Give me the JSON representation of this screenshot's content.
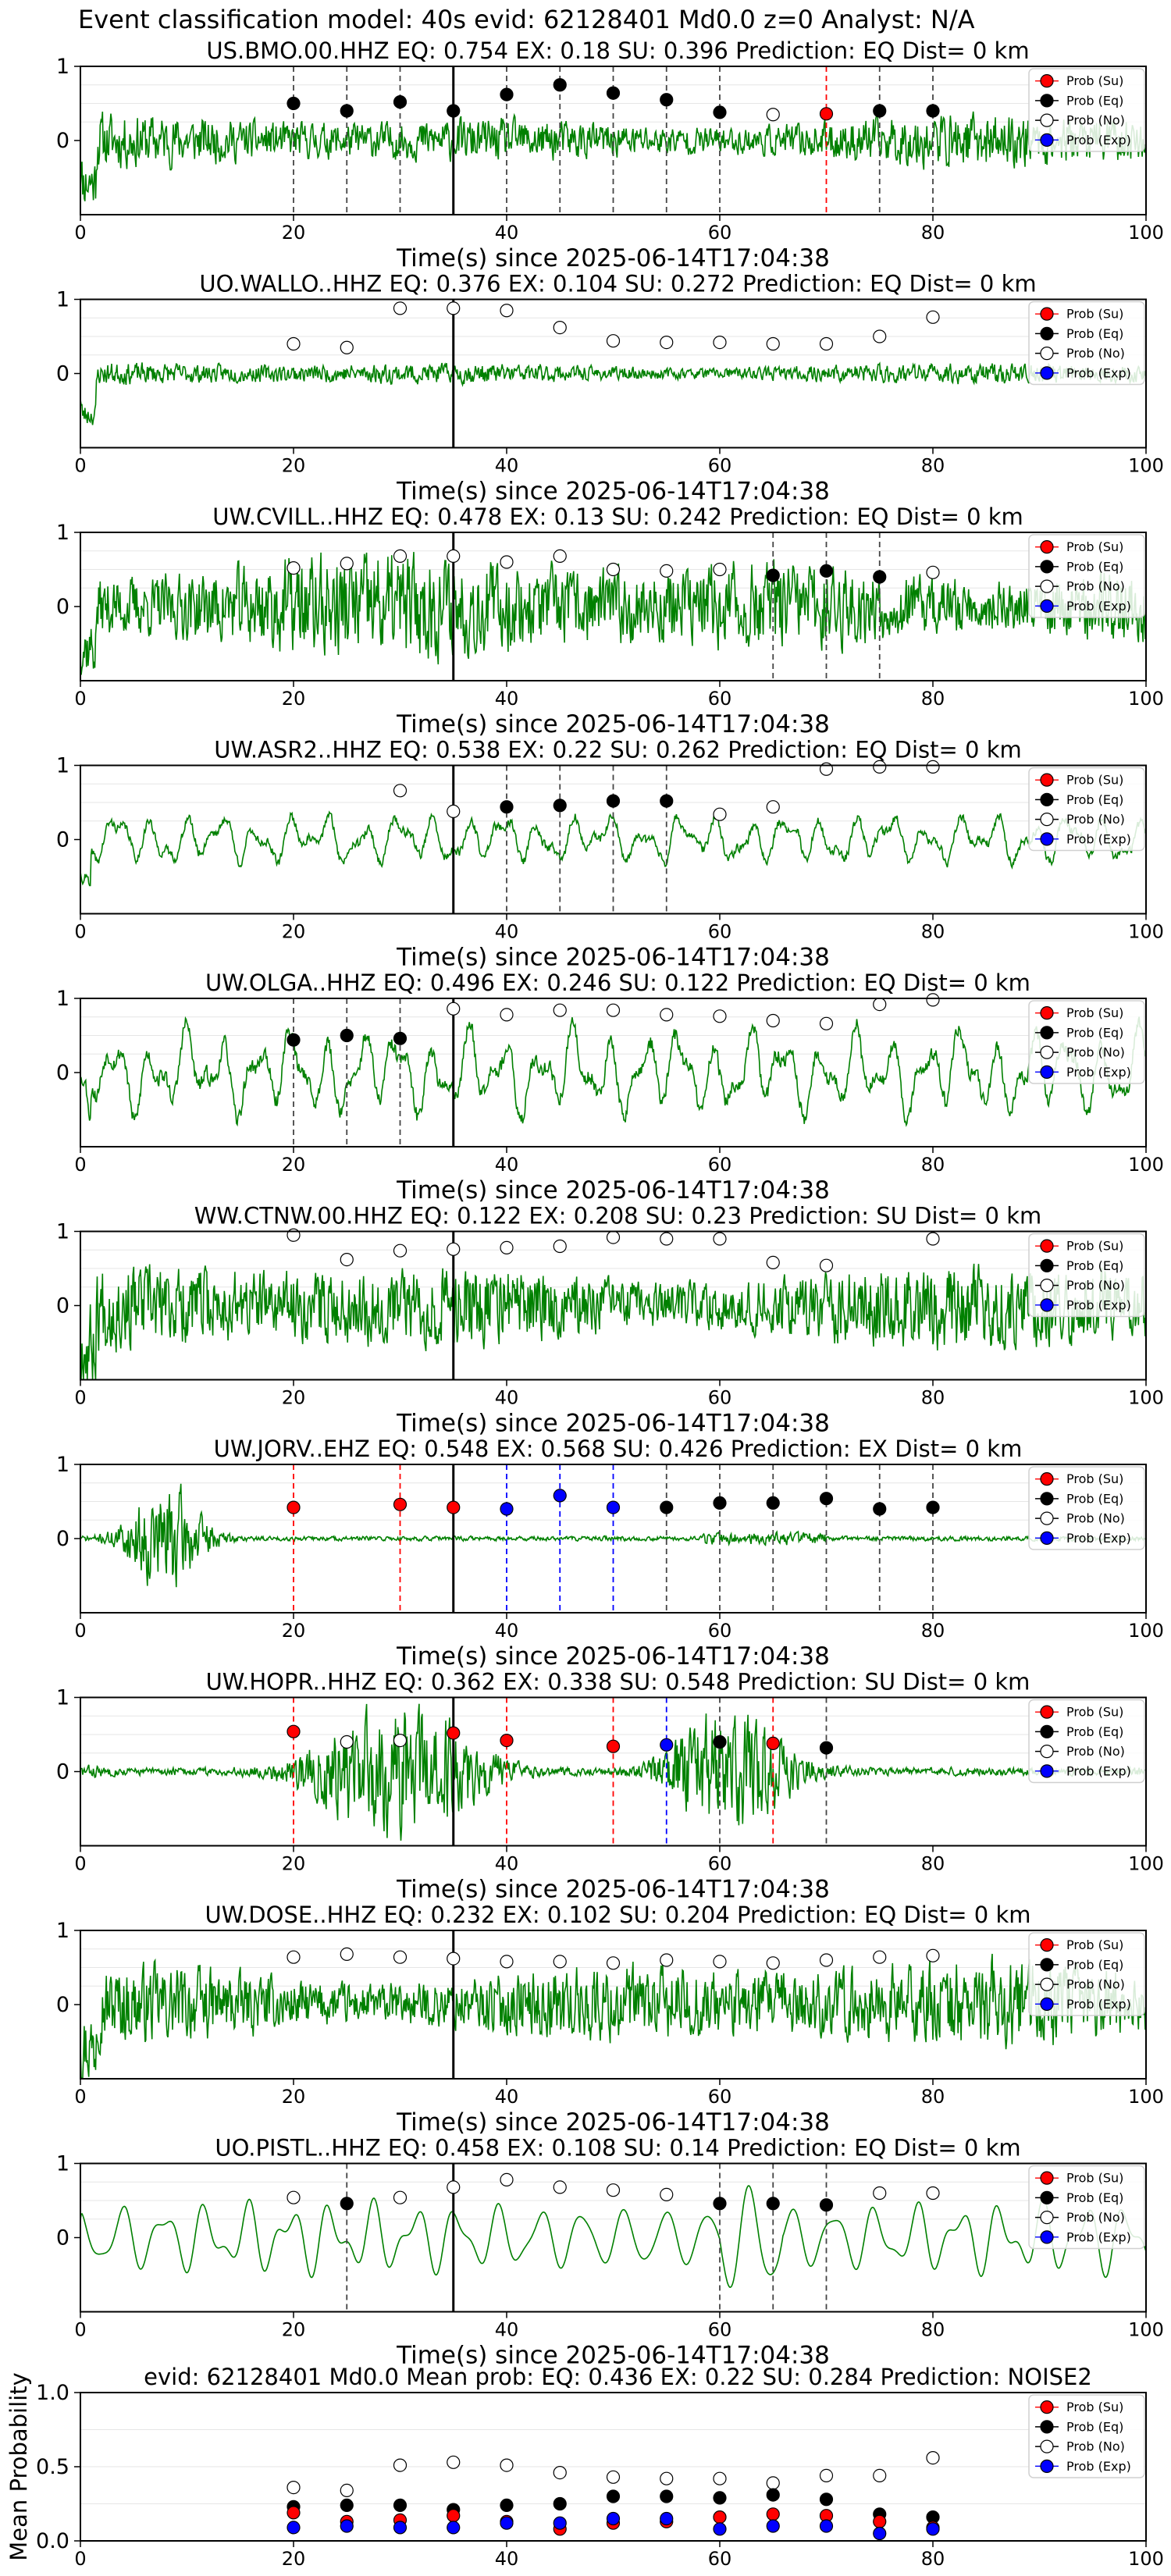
{
  "figure": {
    "title_prefix": "Event classification model:",
    "window": "40s",
    "evid_label": "evid:",
    "evid": "62128401",
    "magnitude": "Md0.0",
    "depth": "z=0",
    "analyst_label": "Analyst:",
    "analyst": "N/A"
  },
  "legend_labels": [
    "Prob (Su)",
    "Prob (Eq)",
    "Prob (No)",
    "Prob (Exp)"
  ],
  "colors": {
    "su": "#ff0000",
    "eq": "#000000",
    "no": "#ffffff",
    "exp": "#0000ff",
    "trace": "#008000",
    "pick_line": "#000000",
    "grid": "#e6e6e6"
  },
  "common": {
    "xlabel": "Time(s) since 2025-06-14T17:04:38",
    "xlim": [
      0,
      100
    ],
    "xticks": [
      0,
      20,
      40,
      60,
      80,
      100
    ],
    "ylim": [
      -1,
      1
    ],
    "yticks": [
      0,
      1
    ],
    "pick_time": 35,
    "legend_position": "top-right"
  },
  "chart_data": [
    {
      "type": "line",
      "title": "US.BMO.00.HHZ   EQ: 0.754   EX: 0.18   SU: 0.396   Prediction: EQ    Dist= 0 km",
      "seed": 11,
      "amp": 0.28,
      "style": "noise",
      "points": [
        {
          "t": 20,
          "c": "eq",
          "p": 0.5
        },
        {
          "t": 25,
          "c": "eq",
          "p": 0.4
        },
        {
          "t": 30,
          "c": "eq",
          "p": 0.52
        },
        {
          "t": 35,
          "c": "eq",
          "p": 0.4
        },
        {
          "t": 40,
          "c": "eq",
          "p": 0.62
        },
        {
          "t": 45,
          "c": "eq",
          "p": 0.75
        },
        {
          "t": 50,
          "c": "eq",
          "p": 0.64
        },
        {
          "t": 55,
          "c": "eq",
          "p": 0.55
        },
        {
          "t": 60,
          "c": "eq",
          "p": 0.38
        },
        {
          "t": 65,
          "c": "no",
          "p": 0.35
        },
        {
          "t": 70,
          "c": "su",
          "p": 0.36
        },
        {
          "t": 75,
          "c": "eq",
          "p": 0.4
        },
        {
          "t": 80,
          "c": "eq",
          "p": 0.4
        }
      ]
    },
    {
      "type": "line",
      "title": "UO.WALLO..HHZ   EQ: 0.376   EX: 0.104   SU: 0.272   Prediction: EQ    Dist= 0 km",
      "seed": 23,
      "amp": 0.12,
      "style": "noise",
      "points": [
        {
          "t": 20,
          "c": "no",
          "p": 0.4
        },
        {
          "t": 25,
          "c": "no",
          "p": 0.35
        },
        {
          "t": 30,
          "c": "no",
          "p": 0.88
        },
        {
          "t": 35,
          "c": "no",
          "p": 0.88
        },
        {
          "t": 40,
          "c": "no",
          "p": 0.85
        },
        {
          "t": 45,
          "c": "no",
          "p": 0.62
        },
        {
          "t": 50,
          "c": "no",
          "p": 0.44
        },
        {
          "t": 55,
          "c": "no",
          "p": 0.42
        },
        {
          "t": 60,
          "c": "no",
          "p": 0.42
        },
        {
          "t": 65,
          "c": "no",
          "p": 0.4
        },
        {
          "t": 70,
          "c": "no",
          "p": 0.4
        },
        {
          "t": 75,
          "c": "no",
          "p": 0.5
        },
        {
          "t": 80,
          "c": "no",
          "p": 0.76
        }
      ]
    },
    {
      "type": "line",
      "title": "UW.CVILL..HHZ   EQ: 0.478   EX: 0.13   SU: 0.242   Prediction: EQ    Dist= 0 km",
      "seed": 37,
      "amp": 0.55,
      "style": "noise",
      "points": [
        {
          "t": 20,
          "c": "no",
          "p": 0.52
        },
        {
          "t": 25,
          "c": "no",
          "p": 0.58
        },
        {
          "t": 30,
          "c": "no",
          "p": 0.68
        },
        {
          "t": 35,
          "c": "no",
          "p": 0.68
        },
        {
          "t": 40,
          "c": "no",
          "p": 0.6
        },
        {
          "t": 45,
          "c": "no",
          "p": 0.68
        },
        {
          "t": 50,
          "c": "no",
          "p": 0.5
        },
        {
          "t": 55,
          "c": "no",
          "p": 0.48
        },
        {
          "t": 60,
          "c": "no",
          "p": 0.5
        },
        {
          "t": 65,
          "c": "eq",
          "p": 0.42
        },
        {
          "t": 70,
          "c": "eq",
          "p": 0.48
        },
        {
          "t": 75,
          "c": "eq",
          "p": 0.4
        },
        {
          "t": 80,
          "c": "no",
          "p": 0.46
        }
      ]
    },
    {
      "type": "line",
      "title": "UW.ASR2..HHZ   EQ: 0.538   EX: 0.22   SU: 0.262   Prediction: EQ    Dist= 0 km",
      "seed": 41,
      "amp": 0.35,
      "style": "wave",
      "points": [
        {
          "t": 30,
          "c": "no",
          "p": 0.66
        },
        {
          "t": 35,
          "c": "no",
          "p": 0.38
        },
        {
          "t": 40,
          "c": "eq",
          "p": 0.44
        },
        {
          "t": 45,
          "c": "eq",
          "p": 0.46
        },
        {
          "t": 50,
          "c": "eq",
          "p": 0.52
        },
        {
          "t": 55,
          "c": "eq",
          "p": 0.52
        },
        {
          "t": 60,
          "c": "no",
          "p": 0.34
        },
        {
          "t": 65,
          "c": "no",
          "p": 0.44
        },
        {
          "t": 70,
          "c": "no",
          "p": 0.95
        },
        {
          "t": 75,
          "c": "no",
          "p": 0.98
        },
        {
          "t": 80,
          "c": "no",
          "p": 0.98
        }
      ]
    },
    {
      "type": "line",
      "title": "UW.OLGA..HHZ   EQ: 0.496   EX: 0.246   SU: 0.122   Prediction: EQ    Dist= 0 km",
      "seed": 53,
      "amp": 0.6,
      "style": "wave",
      "points": [
        {
          "t": 20,
          "c": "eq",
          "p": 0.44
        },
        {
          "t": 25,
          "c": "eq",
          "p": 0.5
        },
        {
          "t": 30,
          "c": "eq",
          "p": 0.46
        },
        {
          "t": 35,
          "c": "no",
          "p": 0.86
        },
        {
          "t": 40,
          "c": "no",
          "p": 0.78
        },
        {
          "t": 45,
          "c": "no",
          "p": 0.84
        },
        {
          "t": 50,
          "c": "no",
          "p": 0.84
        },
        {
          "t": 55,
          "c": "no",
          "p": 0.78
        },
        {
          "t": 60,
          "c": "no",
          "p": 0.76
        },
        {
          "t": 65,
          "c": "no",
          "p": 0.7
        },
        {
          "t": 70,
          "c": "no",
          "p": 0.66
        },
        {
          "t": 75,
          "c": "no",
          "p": 0.92
        },
        {
          "t": 80,
          "c": "no",
          "p": 0.98
        }
      ]
    },
    {
      "type": "line",
      "title": "WW.CTNW.00.HHZ   EQ: 0.122   EX: 0.208   SU: 0.23   Prediction: SU    Dist= 0 km",
      "seed": 67,
      "amp": 0.48,
      "style": "noise",
      "points": [
        {
          "t": 20,
          "c": "no",
          "p": 0.95
        },
        {
          "t": 25,
          "c": "no",
          "p": 0.62
        },
        {
          "t": 30,
          "c": "no",
          "p": 0.74
        },
        {
          "t": 35,
          "c": "no",
          "p": 0.76
        },
        {
          "t": 40,
          "c": "no",
          "p": 0.78
        },
        {
          "t": 45,
          "c": "no",
          "p": 0.8
        },
        {
          "t": 50,
          "c": "no",
          "p": 0.92
        },
        {
          "t": 55,
          "c": "no",
          "p": 0.9
        },
        {
          "t": 60,
          "c": "no",
          "p": 0.9
        },
        {
          "t": 65,
          "c": "no",
          "p": 0.58
        },
        {
          "t": 70,
          "c": "no",
          "p": 0.54
        },
        {
          "t": 80,
          "c": "no",
          "p": 0.9
        }
      ]
    },
    {
      "type": "line",
      "title": "UW.JORV..EHZ   EQ: 0.548   EX: 0.568   SU: 0.426   Prediction: EX    Dist= 0 km",
      "seed": 71,
      "amp": 0.04,
      "style": "burst",
      "points": [
        {
          "t": 20,
          "c": "su",
          "p": 0.42
        },
        {
          "t": 30,
          "c": "su",
          "p": 0.46
        },
        {
          "t": 35,
          "c": "su",
          "p": 0.42
        },
        {
          "t": 40,
          "c": "exp",
          "p": 0.4
        },
        {
          "t": 45,
          "c": "exp",
          "p": 0.58
        },
        {
          "t": 50,
          "c": "exp",
          "p": 0.42
        },
        {
          "t": 55,
          "c": "eq",
          "p": 0.42
        },
        {
          "t": 60,
          "c": "eq",
          "p": 0.48
        },
        {
          "t": 65,
          "c": "eq",
          "p": 0.48
        },
        {
          "t": 70,
          "c": "eq",
          "p": 0.54
        },
        {
          "t": 75,
          "c": "eq",
          "p": 0.4
        },
        {
          "t": 80,
          "c": "eq",
          "p": 0.42
        }
      ]
    },
    {
      "type": "line",
      "title": "UW.HOPR..HHZ   EQ: 0.362   EX: 0.338   SU: 0.548   Prediction: SU    Dist= 0 km",
      "seed": 83,
      "amp": 0.3,
      "style": "events",
      "points": [
        {
          "t": 20,
          "c": "su",
          "p": 0.54
        },
        {
          "t": 25,
          "c": "no",
          "p": 0.4
        },
        {
          "t": 30,
          "c": "no",
          "p": 0.42
        },
        {
          "t": 35,
          "c": "su",
          "p": 0.52
        },
        {
          "t": 40,
          "c": "su",
          "p": 0.42
        },
        {
          "t": 50,
          "c": "su",
          "p": 0.34
        },
        {
          "t": 55,
          "c": "exp",
          "p": 0.36
        },
        {
          "t": 60,
          "c": "eq",
          "p": 0.4
        },
        {
          "t": 65,
          "c": "su",
          "p": 0.38
        },
        {
          "t": 70,
          "c": "eq",
          "p": 0.32
        }
      ]
    },
    {
      "type": "line",
      "title": "UW.DOSE..HHZ   EQ: 0.232   EX: 0.102   SU: 0.204   Prediction: EQ    Dist= 0 km",
      "seed": 97,
      "amp": 0.45,
      "style": "noise",
      "points": [
        {
          "t": 20,
          "c": "no",
          "p": 0.64
        },
        {
          "t": 25,
          "c": "no",
          "p": 0.68
        },
        {
          "t": 30,
          "c": "no",
          "p": 0.64
        },
        {
          "t": 35,
          "c": "no",
          "p": 0.62
        },
        {
          "t": 40,
          "c": "no",
          "p": 0.58
        },
        {
          "t": 45,
          "c": "no",
          "p": 0.58
        },
        {
          "t": 50,
          "c": "no",
          "p": 0.56
        },
        {
          "t": 55,
          "c": "no",
          "p": 0.6
        },
        {
          "t": 60,
          "c": "no",
          "p": 0.58
        },
        {
          "t": 65,
          "c": "no",
          "p": 0.56
        },
        {
          "t": 70,
          "c": "no",
          "p": 0.6
        },
        {
          "t": 75,
          "c": "no",
          "p": 0.64
        },
        {
          "t": 80,
          "c": "no",
          "p": 0.66
        }
      ]
    },
    {
      "type": "line",
      "title": "UO.PISTL..HHZ   EQ: 0.458   EX: 0.108   SU: 0.14   Prediction: EQ    Dist= 0 km",
      "seed": 101,
      "amp": 0.55,
      "style": "smooth",
      "points": [
        {
          "t": 20,
          "c": "no",
          "p": 0.54
        },
        {
          "t": 25,
          "c": "eq",
          "p": 0.46
        },
        {
          "t": 30,
          "c": "no",
          "p": 0.54
        },
        {
          "t": 35,
          "c": "no",
          "p": 0.68
        },
        {
          "t": 40,
          "c": "no",
          "p": 0.78
        },
        {
          "t": 45,
          "c": "no",
          "p": 0.68
        },
        {
          "t": 50,
          "c": "no",
          "p": 0.64
        },
        {
          "t": 55,
          "c": "no",
          "p": 0.58
        },
        {
          "t": 60,
          "c": "eq",
          "p": 0.46
        },
        {
          "t": 65,
          "c": "eq",
          "p": 0.46
        },
        {
          "t": 70,
          "c": "eq",
          "p": 0.44
        },
        {
          "t": 75,
          "c": "no",
          "p": 0.6
        },
        {
          "t": 80,
          "c": "no",
          "p": 0.6
        }
      ]
    },
    {
      "type": "scatter",
      "title": "evid: 62128401   Md0.0   Mean prob:   EQ: 0.436  EX: 0.22  SU: 0.284   Prediction: NOISE2",
      "ylabel": "Mean Probability",
      "ylim": [
        0,
        1
      ],
      "yticks": [
        0,
        0.5,
        1.0
      ],
      "ytick_labels": [
        "0.0",
        "0.5",
        "1.0"
      ],
      "x": [
        20,
        25,
        30,
        35,
        40,
        45,
        50,
        55,
        60,
        65,
        70,
        75,
        80
      ],
      "series": [
        {
          "class": "no",
          "name": "Prob (No)",
          "values": [
            0.36,
            0.34,
            0.51,
            0.53,
            0.51,
            0.46,
            0.43,
            0.42,
            0.42,
            0.39,
            0.44,
            0.44,
            0.56
          ]
        },
        {
          "class": "eq",
          "name": "Prob (Eq)",
          "values": [
            0.23,
            0.24,
            0.24,
            0.21,
            0.24,
            0.25,
            0.3,
            0.3,
            0.29,
            0.31,
            0.28,
            0.18,
            0.16
          ]
        },
        {
          "class": "su",
          "name": "Prob (Su)",
          "values": [
            0.19,
            0.13,
            0.14,
            0.17,
            0.13,
            0.08,
            0.12,
            0.13,
            0.16,
            0.18,
            0.17,
            0.13,
            0.09
          ]
        },
        {
          "class": "exp",
          "name": "Prob (Exp)",
          "values": [
            0.09,
            0.1,
            0.09,
            0.09,
            0.12,
            0.12,
            0.15,
            0.15,
            0.08,
            0.1,
            0.1,
            0.05,
            0.08
          ]
        }
      ]
    }
  ]
}
